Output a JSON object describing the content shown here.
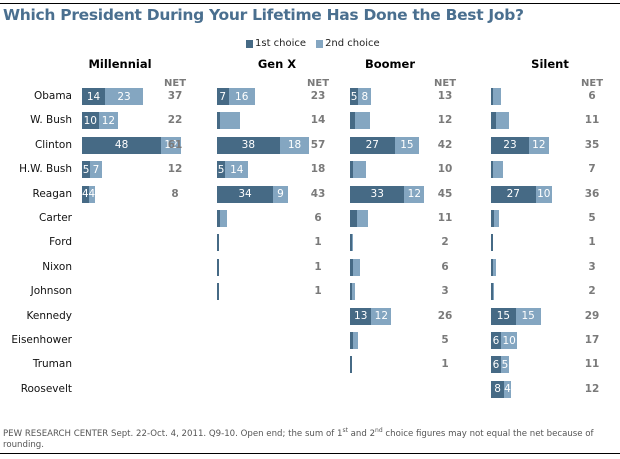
{
  "title": "Which President During Your Lifetime Has Done the Best Job?",
  "colors": {
    "first": "#466a85",
    "second": "#84a6c1",
    "title": "#4a6f8f",
    "net": "#7a7a7a"
  },
  "chart_data": {
    "type": "bar",
    "stacked": true,
    "orientation": "horizontal",
    "title": "Which President During Your Lifetime Has Done the Best Job?",
    "legend": {
      "placement": "top-center",
      "entries": [
        "1st choice",
        "2nd choice"
      ]
    },
    "net_label": "NET",
    "categories": [
      "Obama",
      "W. Bush",
      "Clinton",
      "H.W. Bush",
      "Reagan",
      "Carter",
      "Ford",
      "Nixon",
      "Johnson",
      "Kennedy",
      "Eisenhower",
      "Truman",
      "Roosevelt"
    ],
    "panels": [
      {
        "name": "Millennial",
        "first": [
          14,
          10,
          48,
          5,
          4,
          null,
          null,
          null,
          null,
          null,
          null,
          null,
          null
        ],
        "second": [
          23,
          12,
          12,
          7,
          4,
          null,
          null,
          null,
          null,
          null,
          null,
          null,
          null
        ],
        "first_labels": [
          "14",
          "10",
          "48",
          "5",
          "4",
          "",
          "",
          "",
          "",
          "",
          "",
          "",
          ""
        ],
        "second_labels": [
          "23",
          "12",
          "12",
          "7",
          "4",
          "",
          "",
          "",
          "",
          "",
          "",
          "",
          ""
        ],
        "net": [
          "37",
          "22",
          "61",
          "12",
          "8",
          "",
          "",
          "",
          "",
          "",
          "",
          "",
          ""
        ]
      },
      {
        "name": "Gen X",
        "first": [
          7,
          2,
          38,
          5,
          34,
          2,
          1,
          1,
          1,
          null,
          null,
          null,
          null
        ],
        "second": [
          16,
          12,
          18,
          14,
          9,
          4,
          0,
          0,
          0,
          null,
          null,
          null,
          null
        ],
        "first_labels": [
          "7",
          "",
          "38",
          "5",
          "34",
          "",
          "",
          "",
          "",
          "",
          "",
          "",
          ""
        ],
        "second_labels": [
          "16",
          "",
          "18",
          "14",
          "9",
          "",
          "",
          "",
          "",
          "",
          "",
          "",
          ""
        ],
        "net": [
          "23",
          "14",
          "57",
          "18",
          "43",
          "6",
          "1",
          "1",
          "1",
          "",
          "",
          "",
          ""
        ]
      },
      {
        "name": "Boomer",
        "first": [
          5,
          3,
          27,
          2,
          33,
          4,
          1,
          2,
          1,
          13,
          2,
          1,
          null
        ],
        "second": [
          8,
          9,
          15,
          8,
          12,
          7,
          1,
          4,
          2,
          12,
          3,
          0,
          null
        ],
        "first_labels": [
          "5",
          "",
          "27",
          "",
          "33",
          "",
          "",
          "",
          "",
          "13",
          "",
          "",
          ""
        ],
        "second_labels": [
          "8",
          "",
          "15",
          "",
          "12",
          "",
          "",
          "",
          "",
          "12",
          "",
          "",
          ""
        ],
        "net": [
          "13",
          "12",
          "42",
          "10",
          "45",
          "11",
          "2",
          "6",
          "3",
          "26",
          "5",
          "1",
          ""
        ]
      },
      {
        "name": "Silent",
        "first": [
          1,
          3,
          23,
          1,
          27,
          2,
          1,
          1,
          1,
          15,
          6,
          6,
          8
        ],
        "second": [
          5,
          8,
          12,
          6,
          10,
          3,
          0,
          2,
          1,
          15,
          10,
          5,
          4
        ],
        "first_labels": [
          "",
          "",
          "23",
          "",
          "27",
          "",
          "",
          "",
          "",
          "15",
          "6",
          "6",
          "8"
        ],
        "second_labels": [
          "",
          "",
          "12",
          "",
          "10",
          "",
          "",
          "",
          "",
          "15",
          "10",
          "5",
          "4"
        ],
        "net": [
          "6",
          "11",
          "35",
          "7",
          "36",
          "5",
          "1",
          "3",
          "2",
          "29",
          "17",
          "11",
          "12"
        ]
      }
    ],
    "xlabel": "",
    "ylabel": "",
    "grid": false
  },
  "footnote": {
    "part1": "PEW RESEARCH  CENTER Sept. 22-Oct. 4, 2011. Q9-10. Open end; the sum of 1",
    "sup1": "st",
    "part2": " and 2",
    "sup2": "nd",
    "part3": " choice figures may not equal the net because of rounding."
  }
}
